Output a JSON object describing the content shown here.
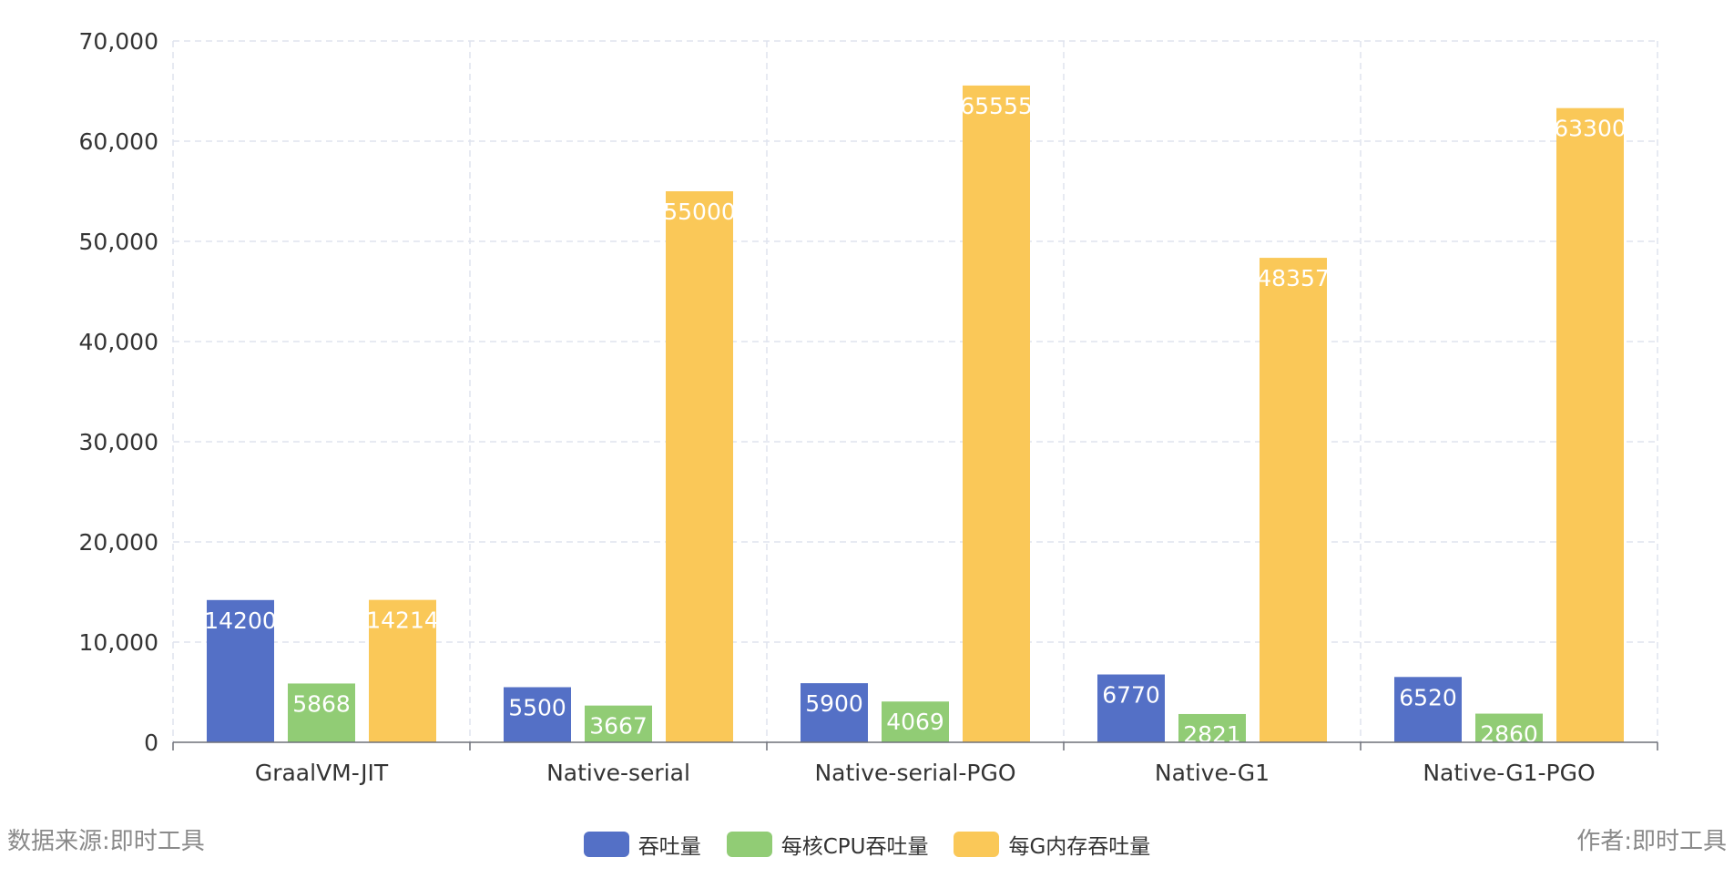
{
  "chart_data": {
    "type": "bar",
    "categories": [
      "GraalVM-JIT",
      "Native-serial",
      "Native-serial-PGO",
      "Native-G1",
      "Native-G1-PGO"
    ],
    "series": [
      {
        "name": "吞吐量",
        "color": "#5470c6",
        "values": [
          14200,
          5500,
          5900,
          6770,
          6520
        ]
      },
      {
        "name": "每核CPU吞吐量",
        "color": "#91cc75",
        "values": [
          5868,
          3667,
          4069,
          2821,
          2860
        ]
      },
      {
        "name": "每G内存吞吐量",
        "color": "#fac858",
        "values": [
          14214,
          55000,
          65555,
          48357,
          63300
        ]
      }
    ],
    "yticks": [
      "0",
      "10,000",
      "20,000",
      "30,000",
      "40,000",
      "50,000",
      "60,000",
      "70,000"
    ],
    "ylim": [
      0,
      70000
    ],
    "grid": true,
    "legend_position": "bottom-center"
  },
  "footer": {
    "source": "数据来源:即时工具",
    "author": "作者:即时工具"
  }
}
